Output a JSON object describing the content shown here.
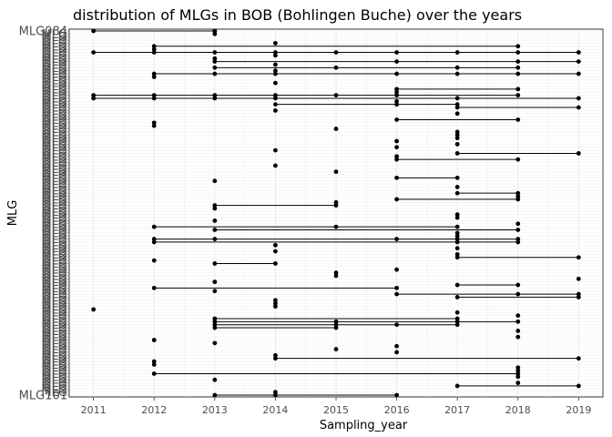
{
  "chart_data": {
    "type": "scatter",
    "title": "distribution of MLGs in BOB (Bohlingen Buche) over the years",
    "xlabel": "Sampling_year",
    "ylabel": "MLG",
    "x_ticks": [
      2011,
      2012,
      2013,
      2014,
      2015,
      2016,
      2017,
      2018,
      2019
    ],
    "xlim": [
      2010.6,
      2019.4
    ],
    "y_category_count": 120,
    "y_top_label": "MLG084",
    "y_bottom_label": "MLG101",
    "y_tick_labels": [
      "MLG084",
      "MLG",
      "MLG",
      "MLG",
      "MLG",
      "MLG",
      "MLG",
      "MLG",
      "MLG",
      "MLG",
      "MLG",
      "MLG",
      "MLG",
      "MLG",
      "MLG",
      "MLG",
      "MLG",
      "MLG",
      "MLG",
      "MLG",
      "MLG",
      "MLG",
      "MLG",
      "MLG",
      "MLG",
      "MLG",
      "MLG",
      "MLG",
      "MLG",
      "MLG",
      "MLG",
      "MLG",
      "MLG",
      "MLG",
      "MLG",
      "MLG",
      "MLG",
      "MLG",
      "MLG",
      "MLG",
      "MLG",
      "MLG",
      "MLG",
      "MLG",
      "MLG",
      "MLG",
      "MLG",
      "MLG",
      "MLG",
      "MLG",
      "MLG",
      "MLG",
      "MLG",
      "MLG",
      "MLG",
      "MLG",
      "MLG",
      "MLG",
      "MLG",
      "MLG",
      "MLG",
      "MLG",
      "MLG",
      "MLG",
      "MLG",
      "MLG",
      "MLG",
      "MLG",
      "MLG",
      "MLG",
      "MLG",
      "MLG",
      "MLG",
      "MLG",
      "MLG",
      "MLG",
      "MLG",
      "MLG",
      "MLG",
      "MLG",
      "MLG",
      "MLG",
      "MLG",
      "MLG",
      "MLG",
      "MLG",
      "MLG",
      "MLG",
      "MLG",
      "MLG",
      "MLG",
      "MLG",
      "MLG",
      "MLG",
      "MLG",
      "MLG",
      "MLG",
      "MLG",
      "MLG",
      "MLG",
      "MLG",
      "MLG",
      "MLG",
      "MLG",
      "MLG",
      "MLG",
      "MLG",
      "MLG",
      "MLG",
      "MLG",
      "MLG",
      "MLG",
      "MLG",
      "MLG",
      "MLG",
      "MLG",
      "MLG",
      "MLG",
      "MLG",
      "MLG101"
    ],
    "series": [
      {
        "mlg_rank": 1,
        "years": [
          2011,
          2013
        ]
      },
      {
        "mlg_rank": 2,
        "years": [
          2013
        ]
      },
      {
        "mlg_rank": 5,
        "years": [
          2014
        ]
      },
      {
        "mlg_rank": 6,
        "years": [
          2012,
          2018
        ]
      },
      {
        "mlg_rank": 7,
        "years": [
          2012
        ]
      },
      {
        "mlg_rank": 8,
        "years": [
          2011,
          2012,
          2013,
          2014,
          2015,
          2016,
          2017,
          2018,
          2019
        ]
      },
      {
        "mlg_rank": 9,
        "years": [
          2014
        ]
      },
      {
        "mlg_rank": 10,
        "years": [
          2013
        ]
      },
      {
        "mlg_rank": 11,
        "years": [
          2013,
          2016,
          2018,
          2019
        ]
      },
      {
        "mlg_rank": 12,
        "years": [
          2014
        ]
      },
      {
        "mlg_rank": 13,
        "years": [
          2013,
          2015,
          2017,
          2018
        ]
      },
      {
        "mlg_rank": 14,
        "years": [
          2014
        ]
      },
      {
        "mlg_rank": 15,
        "years": [
          2012,
          2013,
          2014,
          2016,
          2017,
          2018,
          2019
        ]
      },
      {
        "mlg_rank": 16,
        "years": [
          2012
        ]
      },
      {
        "mlg_rank": 18,
        "years": [
          2014
        ]
      },
      {
        "mlg_rank": 20,
        "years": [
          2016,
          2018
        ]
      },
      {
        "mlg_rank": 21,
        "years": [
          2016
        ]
      },
      {
        "mlg_rank": 22,
        "years": [
          2011,
          2012,
          2013,
          2014,
          2015,
          2016,
          2018
        ]
      },
      {
        "mlg_rank": 23,
        "years": [
          2011,
          2012,
          2013,
          2014,
          2017,
          2019
        ]
      },
      {
        "mlg_rank": 24,
        "years": [
          2016
        ]
      },
      {
        "mlg_rank": 25,
        "years": [
          2014,
          2016,
          2017
        ]
      },
      {
        "mlg_rank": 26,
        "years": [
          2017,
          2019
        ]
      },
      {
        "mlg_rank": 27,
        "years": [
          2014
        ]
      },
      {
        "mlg_rank": 28,
        "years": [
          2017
        ]
      },
      {
        "mlg_rank": 30,
        "years": [
          2016,
          2018
        ]
      },
      {
        "mlg_rank": 31,
        "years": [
          2012
        ]
      },
      {
        "mlg_rank": 32,
        "years": [
          2012
        ]
      },
      {
        "mlg_rank": 33,
        "years": [
          2015
        ]
      },
      {
        "mlg_rank": 34,
        "years": [
          2017
        ]
      },
      {
        "mlg_rank": 35,
        "years": [
          2017
        ]
      },
      {
        "mlg_rank": 36,
        "years": [
          2017
        ]
      },
      {
        "mlg_rank": 37,
        "years": [
          2016
        ]
      },
      {
        "mlg_rank": 38,
        "years": [
          2017
        ]
      },
      {
        "mlg_rank": 39,
        "years": [
          2016
        ]
      },
      {
        "mlg_rank": 40,
        "years": [
          2014
        ]
      },
      {
        "mlg_rank": 41,
        "years": [
          2017,
          2019
        ]
      },
      {
        "mlg_rank": 42,
        "years": [
          2016
        ]
      },
      {
        "mlg_rank": 43,
        "years": [
          2016,
          2018
        ]
      },
      {
        "mlg_rank": 45,
        "years": [
          2014
        ]
      },
      {
        "mlg_rank": 47,
        "years": [
          2015
        ]
      },
      {
        "mlg_rank": 49,
        "years": [
          2016,
          2017
        ]
      },
      {
        "mlg_rank": 50,
        "years": [
          2013
        ]
      },
      {
        "mlg_rank": 52,
        "years": [
          2017
        ]
      },
      {
        "mlg_rank": 54,
        "years": [
          2017,
          2018
        ]
      },
      {
        "mlg_rank": 55,
        "years": [
          2018
        ]
      },
      {
        "mlg_rank": 56,
        "years": [
          2016,
          2018
        ]
      },
      {
        "mlg_rank": 57,
        "years": [
          2015
        ]
      },
      {
        "mlg_rank": 58,
        "years": [
          2013,
          2015
        ]
      },
      {
        "mlg_rank": 59,
        "years": [
          2013
        ]
      },
      {
        "mlg_rank": 61,
        "years": [
          2017
        ]
      },
      {
        "mlg_rank": 62,
        "years": [
          2017
        ]
      },
      {
        "mlg_rank": 63,
        "years": [
          2013
        ]
      },
      {
        "mlg_rank": 64,
        "years": [
          2018
        ]
      },
      {
        "mlg_rank": 65,
        "years": [
          2012,
          2015,
          2017
        ]
      },
      {
        "mlg_rank": 66,
        "years": [
          2013,
          2018
        ]
      },
      {
        "mlg_rank": 67,
        "years": [
          2017
        ]
      },
      {
        "mlg_rank": 68,
        "years": [
          2017
        ]
      },
      {
        "mlg_rank": 69,
        "years": [
          2012,
          2013,
          2016,
          2017,
          2018
        ]
      },
      {
        "mlg_rank": 70,
        "years": [
          2012,
          2017,
          2018
        ]
      },
      {
        "mlg_rank": 71,
        "years": [
          2014
        ]
      },
      {
        "mlg_rank": 72,
        "years": [
          2017
        ]
      },
      {
        "mlg_rank": 73,
        "years": [
          2014
        ]
      },
      {
        "mlg_rank": 74,
        "years": [
          2017
        ]
      },
      {
        "mlg_rank": 75,
        "years": [
          2017,
          2019
        ]
      },
      {
        "mlg_rank": 76,
        "years": [
          2012
        ]
      },
      {
        "mlg_rank": 77,
        "years": [
          2013,
          2014
        ]
      },
      {
        "mlg_rank": 79,
        "years": [
          2016
        ]
      },
      {
        "mlg_rank": 80,
        "years": [
          2015
        ]
      },
      {
        "mlg_rank": 81,
        "years": [
          2015
        ]
      },
      {
        "mlg_rank": 82,
        "years": [
          2019
        ]
      },
      {
        "mlg_rank": 83,
        "years": [
          2013
        ]
      },
      {
        "mlg_rank": 84,
        "years": [
          2017,
          2018
        ]
      },
      {
        "mlg_rank": 85,
        "years": [
          2012,
          2016
        ]
      },
      {
        "mlg_rank": 86,
        "years": [
          2013
        ]
      },
      {
        "mlg_rank": 87,
        "years": [
          2016,
          2018,
          2019
        ]
      },
      {
        "mlg_rank": 88,
        "years": [
          2017,
          2019
        ]
      },
      {
        "mlg_rank": 89,
        "years": [
          2014
        ]
      },
      {
        "mlg_rank": 90,
        "years": [
          2014
        ]
      },
      {
        "mlg_rank": 91,
        "years": [
          2014
        ]
      },
      {
        "mlg_rank": 92,
        "years": [
          2011
        ]
      },
      {
        "mlg_rank": 93,
        "years": [
          2017
        ]
      },
      {
        "mlg_rank": 94,
        "years": [
          2018
        ]
      },
      {
        "mlg_rank": 95,
        "years": [
          2013,
          2017
        ]
      },
      {
        "mlg_rank": 96,
        "years": [
          2013,
          2015,
          2017,
          2018
        ]
      },
      {
        "mlg_rank": 97,
        "years": [
          2013,
          2015,
          2016,
          2017
        ]
      },
      {
        "mlg_rank": 98,
        "years": [
          2013,
          2015
        ]
      },
      {
        "mlg_rank": 99,
        "years": [
          2018
        ]
      },
      {
        "mlg_rank": 101,
        "years": [
          2018
        ]
      },
      {
        "mlg_rank": 102,
        "years": [
          2012
        ]
      },
      {
        "mlg_rank": 103,
        "years": [
          2013
        ]
      },
      {
        "mlg_rank": 104,
        "years": [
          2016
        ]
      },
      {
        "mlg_rank": 105,
        "years": [
          2015
        ]
      },
      {
        "mlg_rank": 106,
        "years": [
          2016
        ]
      },
      {
        "mlg_rank": 107,
        "years": [
          2014
        ]
      },
      {
        "mlg_rank": 108,
        "years": [
          2014,
          2019
        ]
      },
      {
        "mlg_rank": 109,
        "years": [
          2012
        ]
      },
      {
        "mlg_rank": 110,
        "years": [
          2012
        ]
      },
      {
        "mlg_rank": 111,
        "years": [
          2018
        ]
      },
      {
        "mlg_rank": 112,
        "years": [
          2018
        ]
      },
      {
        "mlg_rank": 113,
        "years": [
          2012,
          2018
        ]
      },
      {
        "mlg_rank": 114,
        "years": [
          2018
        ]
      },
      {
        "mlg_rank": 115,
        "years": [
          2013
        ]
      },
      {
        "mlg_rank": 116,
        "years": [
          2018
        ]
      },
      {
        "mlg_rank": 117,
        "years": [
          2017,
          2019
        ]
      },
      {
        "mlg_rank": 119,
        "years": [
          2014
        ]
      },
      {
        "mlg_rank": 120,
        "years": [
          2013,
          2014,
          2016
        ]
      }
    ]
  }
}
